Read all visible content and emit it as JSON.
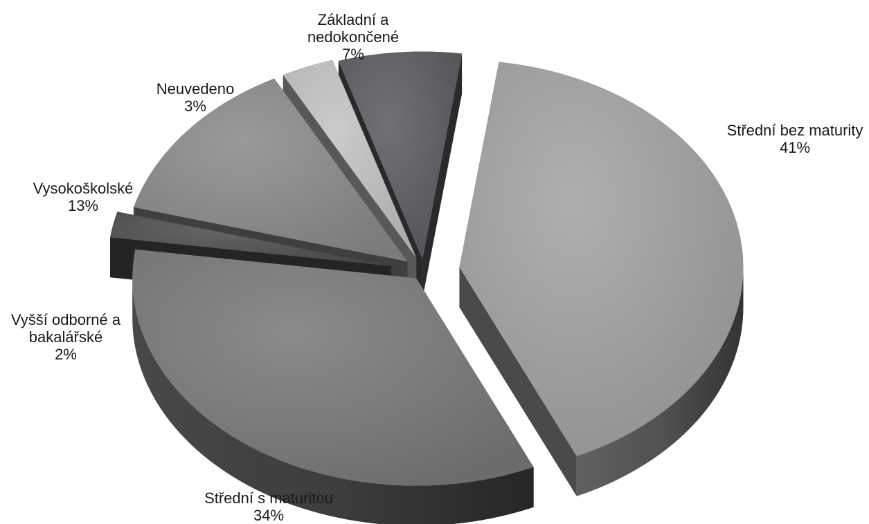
{
  "chart_data": {
    "type": "pie",
    "title": "",
    "slices": [
      {
        "label_lines": [
          "Střední bez maturity"
        ],
        "value": 41,
        "value_label": "41%",
        "color": "#a4a4a4"
      },
      {
        "label_lines": [
          "Střední s maturitou"
        ],
        "value": 34,
        "value_label": "34%",
        "color": "#7b7b7b"
      },
      {
        "label_lines": [
          "Vyšší odborné a",
          "bakalářské"
        ],
        "value": 2,
        "value_label": "2%",
        "color": "#505050"
      },
      {
        "label_lines": [
          "Vysokoškolské"
        ],
        "value": 13,
        "value_label": "13%",
        "color": "#8c8c8c"
      },
      {
        "label_lines": [
          "Neuvedeno"
        ],
        "value": 3,
        "value_label": "3%",
        "color": "#c4c4c4"
      },
      {
        "label_lines": [
          "Základní a",
          "nedokončené"
        ],
        "value": 7,
        "value_label": "7%",
        "color": "#5d5e61"
      }
    ],
    "style": "3d-exploded",
    "legend": "none"
  }
}
